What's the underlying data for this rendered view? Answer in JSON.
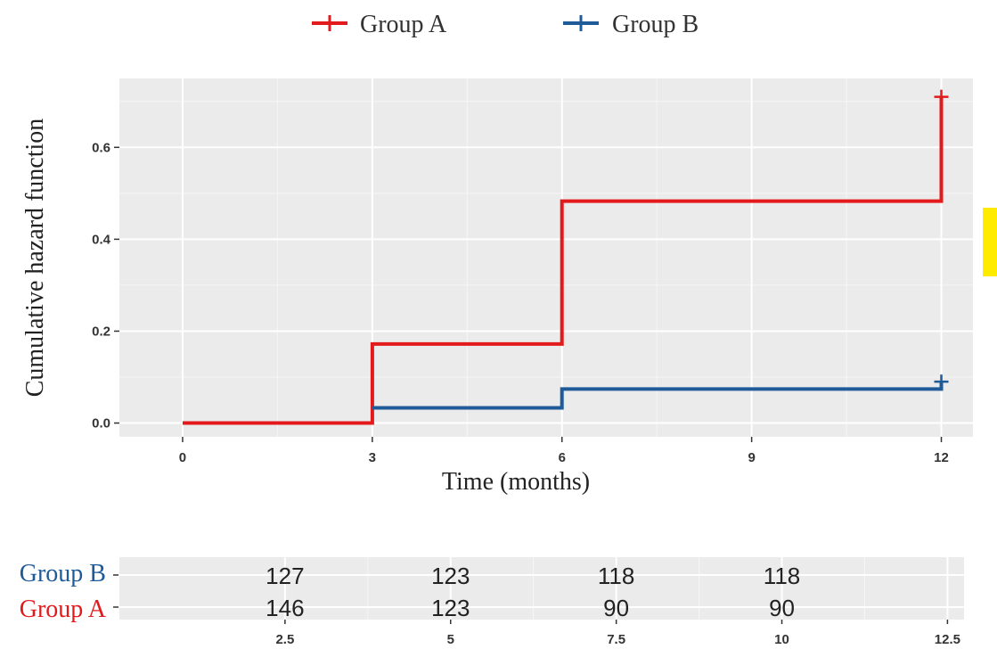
{
  "chart_data": [
    {
      "type": "line",
      "step": true,
      "title": "",
      "xlabel": "Time (months)",
      "ylabel": "Cumulative hazard function",
      "xlim": [
        -1,
        12.5
      ],
      "ylim": [
        -0.03,
        0.75
      ],
      "x_ticks": [
        0,
        3,
        6,
        9,
        12
      ],
      "y_ticks": [
        0.0,
        0.2,
        0.4,
        0.6
      ],
      "y_tick_labels": [
        "0.0",
        "0.2",
        "0.4",
        "0.6"
      ],
      "grid": true,
      "legend_position": "top",
      "series": [
        {
          "name": "Group A",
          "color": "#e31a1c",
          "points": [
            [
              0,
              0.0
            ],
            [
              3,
              0.0
            ],
            [
              3,
              0.172
            ],
            [
              6,
              0.172
            ],
            [
              6,
              0.483
            ],
            [
              12,
              0.483
            ],
            [
              12,
              0.71
            ]
          ],
          "censor_marks": [
            [
              12,
              0.71
            ]
          ]
        },
        {
          "name": "Group B",
          "color": "#1f5a99",
          "points": [
            [
              3,
              0.033
            ],
            [
              6,
              0.033
            ],
            [
              6,
              0.074
            ],
            [
              12,
              0.074
            ],
            [
              12,
              0.09
            ]
          ],
          "censor_marks": [
            [
              12,
              0.09
            ]
          ]
        }
      ]
    },
    {
      "type": "table",
      "title": "",
      "rows": [
        {
          "name": "Group B",
          "color": "#1f5a99",
          "values": [
            "127",
            "123",
            "118",
            "118"
          ]
        },
        {
          "name": "Group A",
          "color": "#e31a1c",
          "values": [
            "146",
            "123",
            "90",
            "90"
          ]
        }
      ],
      "x": [
        2.5,
        5,
        7.5,
        10
      ],
      "x_ticks": [
        2.5,
        5,
        7.5,
        10,
        12.5
      ],
      "x_tick_labels": [
        "2.5",
        "5",
        "7.5",
        "10",
        "12.5"
      ],
      "xlim": [
        0,
        12.75
      ]
    }
  ]
}
